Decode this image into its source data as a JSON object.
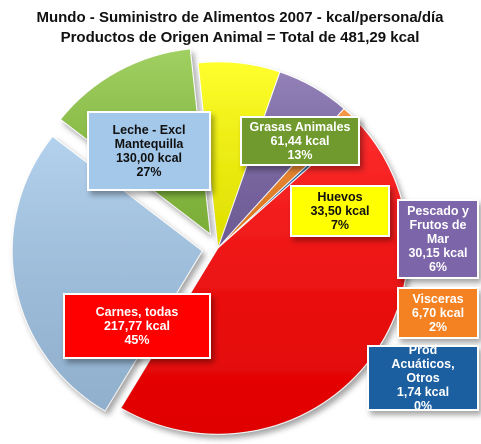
{
  "chart_data": {
    "type": "pie",
    "title": "Mundo - Suministro de Alimentos 2007 - kcal/persona/día",
    "subtitle": "Productos de Origen Animal = Total de 481,29 kcal",
    "slices": [
      {
        "name": "Grasas Animales",
        "value_label": "61,44 kcal",
        "pct_label": "13%",
        "value": 61.44,
        "color": "#8cc63f",
        "label_bg": "#6f9a2e",
        "label_fg": "#ffffff",
        "exploded": true
      },
      {
        "name": "Huevos",
        "value_label": "33,50 kcal",
        "pct_label": "7%",
        "value": 33.5,
        "color": "#ffff00",
        "label_bg": "#ffff00",
        "label_fg": "#111111",
        "exploded": false
      },
      {
        "name": "Pescado y Frutos de Mar",
        "value_label": "30,15 kcal",
        "pct_label": "6%",
        "value": 30.15,
        "color": "#7b65a8",
        "label_bg": "#7b65a8",
        "label_fg": "#ffffff",
        "exploded": false
      },
      {
        "name": "Visceras",
        "value_label": "6,70 kcal",
        "pct_label": "2%",
        "value": 6.7,
        "color": "#f58220",
        "label_bg": "#f58220",
        "label_fg": "#ffffff",
        "exploded": false
      },
      {
        "name": "Prod Acuáticos, Otros",
        "value_label": "1,74 kcal",
        "pct_label": "0%",
        "value": 1.74,
        "color": "#1f5fa0",
        "label_bg": "#1f5fa0",
        "label_fg": "#ffffff",
        "exploded": false
      },
      {
        "name": "Carnes, todas",
        "value_label": "217,77 kcal",
        "pct_label": "45%",
        "value": 217.77,
        "color": "#ff0000",
        "label_bg": "#ff0000",
        "label_fg": "#ffffff",
        "exploded": false
      },
      {
        "name": "Leche - Excl Mantequilla",
        "value_label": "130,00 kcal",
        "pct_label": "27%",
        "value": 130.0,
        "color": "#a3c8ea",
        "label_bg": "#a3c8ea",
        "label_fg": "#111111",
        "exploded": true
      }
    ]
  }
}
